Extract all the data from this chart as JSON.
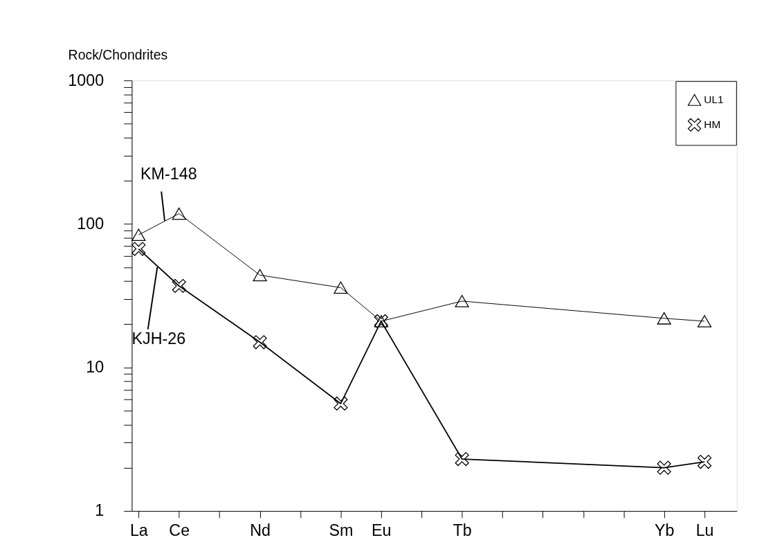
{
  "chart_data": {
    "type": "line",
    "ylabel": "Rock/Chondrites",
    "categories": [
      "La",
      "Ce",
      null,
      "Nd",
      null,
      "Sm",
      "Eu",
      null,
      "Tb",
      null,
      null,
      null,
      null,
      "Yb",
      "Lu"
    ],
    "series": [
      {
        "name": "UL1",
        "color": "#000000",
        "marker": "triangle",
        "values": [
          84,
          118,
          null,
          44,
          null,
          36,
          21,
          null,
          29,
          null,
          null,
          null,
          null,
          22,
          21
        ]
      },
      {
        "name": "HM",
        "color": "#000000",
        "marker": "cross",
        "values": [
          67,
          37,
          null,
          15,
          null,
          5.6,
          21,
          null,
          2.3,
          null,
          null,
          null,
          null,
          2.0,
          2.2
        ]
      }
    ],
    "log": true,
    "ylim": [
      1,
      1000
    ],
    "yticks": [
      1,
      {
        "value": 2,
        "label": null
      },
      {
        "value": 3,
        "label": null
      },
      {
        "value": 4,
        "label": null
      },
      {
        "value": 5,
        "label": null
      },
      {
        "value": 6,
        "label": null
      },
      {
        "value": 7,
        "label": null
      },
      {
        "value": 8,
        "label": null
      },
      {
        "value": 9,
        "label": null
      },
      10,
      {
        "value": 20,
        "label": null
      },
      {
        "value": 30,
        "label": null
      },
      {
        "value": 40,
        "label": null
      },
      {
        "value": 50,
        "label": null
      },
      {
        "value": 60,
        "label": null
      },
      {
        "value": 70,
        "label": null
      },
      {
        "value": 80,
        "label": null
      },
      {
        "value": 90,
        "label": null
      },
      100,
      {
        "value": 200,
        "label": null
      },
      {
        "value": 300,
        "label": null
      },
      {
        "value": 400,
        "label": null
      },
      {
        "value": 500,
        "label": null
      },
      {
        "value": 600,
        "label": null
      },
      {
        "value": 700,
        "label": null
      },
      {
        "value": 800,
        "label": null
      },
      {
        "value": 900,
        "label": null
      },
      1000
    ],
    "grid": false,
    "legend": "top right",
    "annotations": [
      {
        "text": "KM-148",
        "y": 105
      },
      {
        "text": "KJH-26",
        "y": 50
      }
    ]
  }
}
